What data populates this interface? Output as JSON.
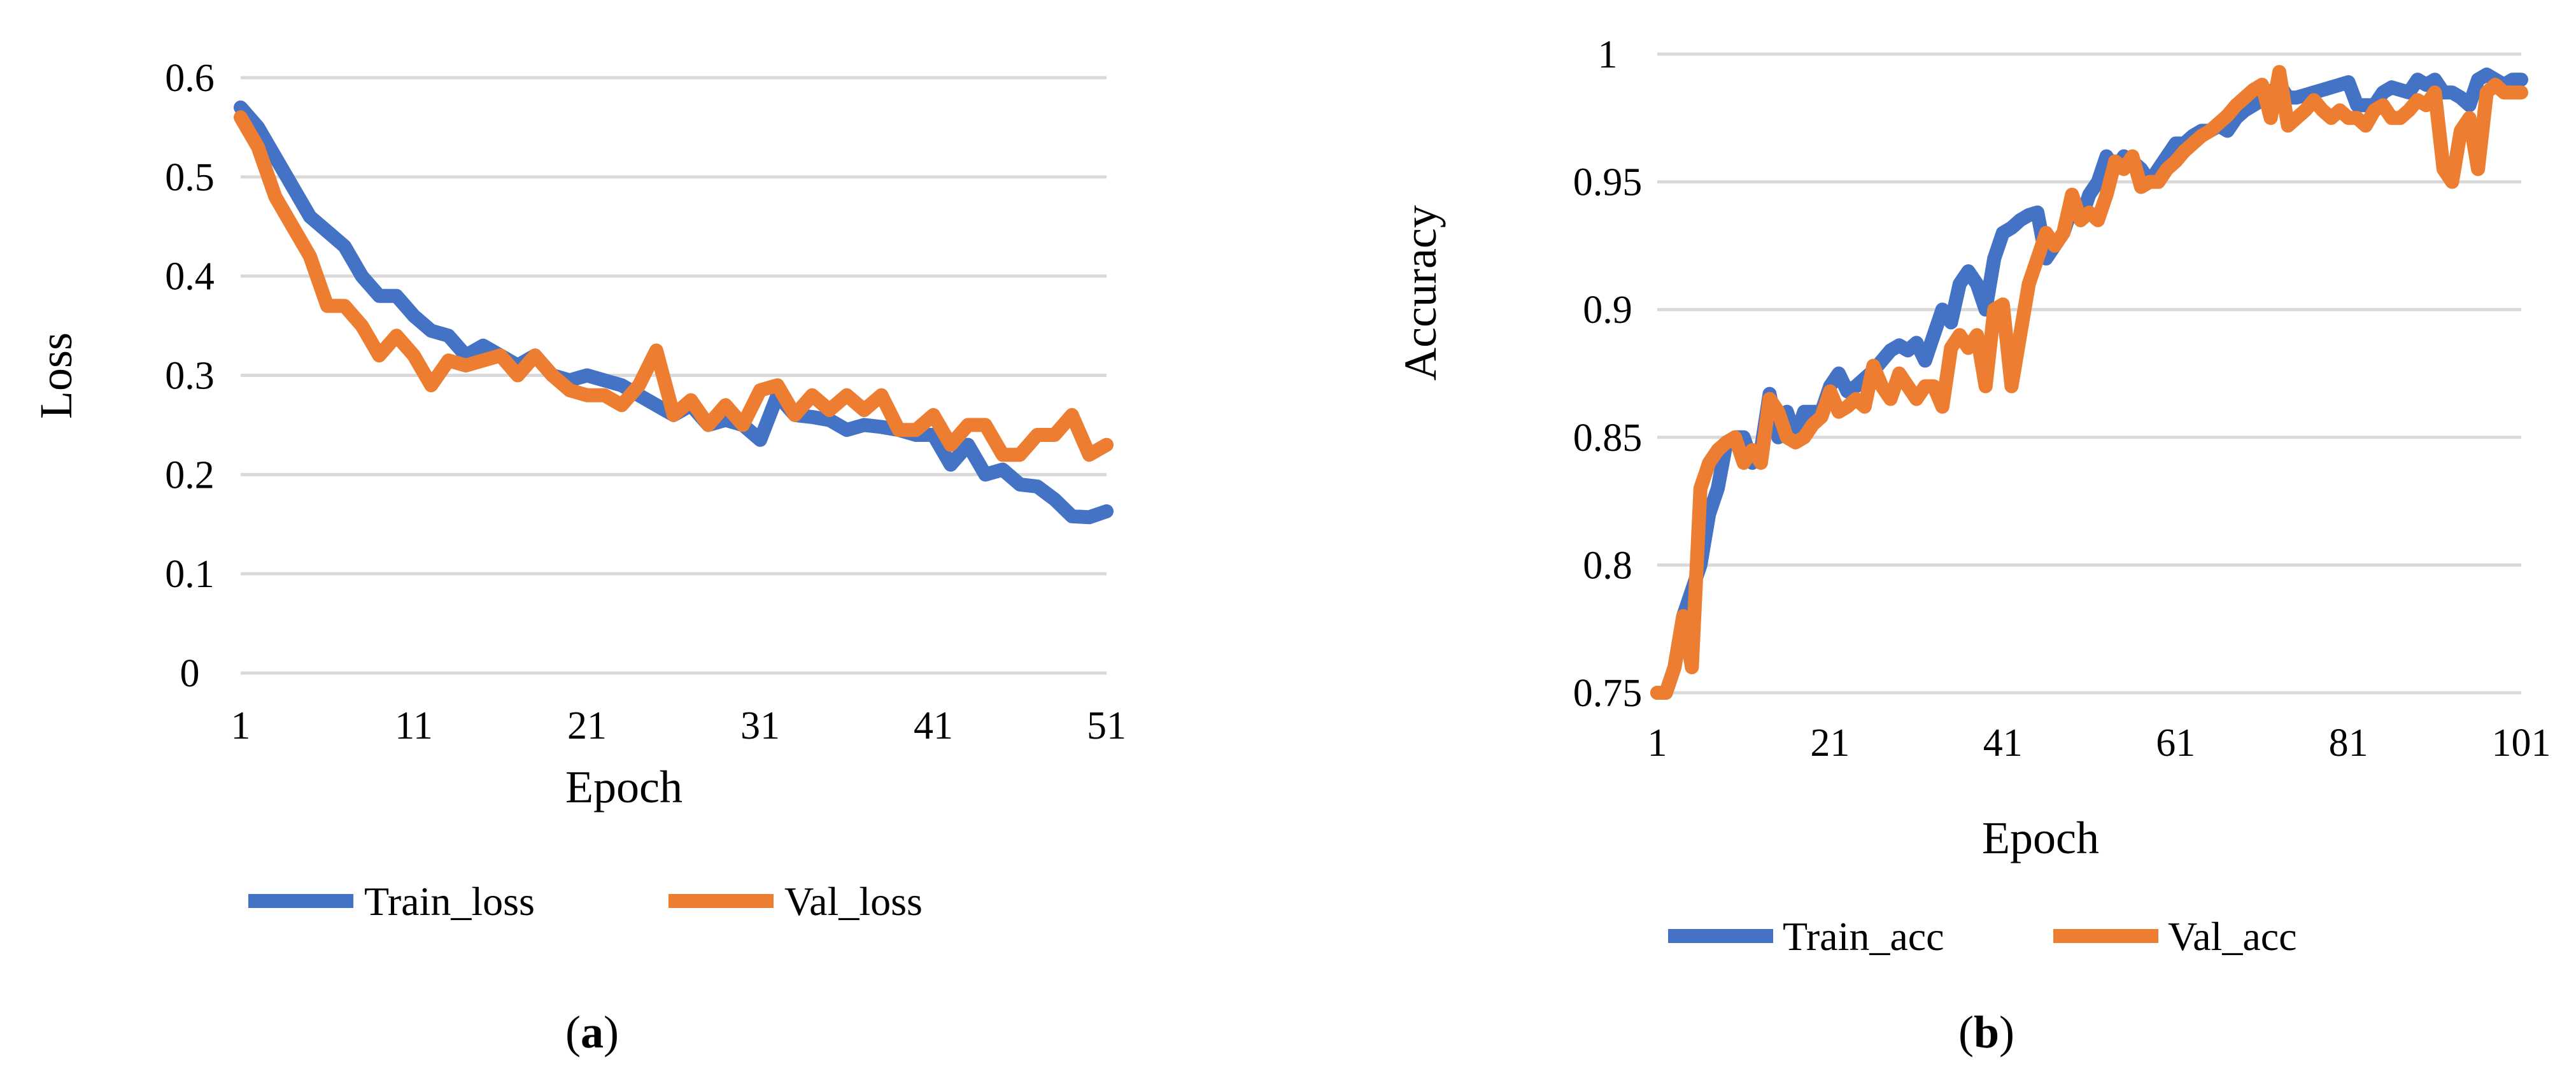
{
  "colors": {
    "train": "#4472c4",
    "val": "#ed7d31",
    "grid": "#d9d9d9"
  },
  "panel_labels": [
    "a",
    "b"
  ],
  "chart_data": [
    {
      "type": "line",
      "title": "",
      "xlabel": "Epoch",
      "ylabel": "Loss",
      "xlim": [
        1,
        51
      ],
      "ylim": [
        0,
        0.6
      ],
      "xticks": [
        "1",
        "11",
        "21",
        "31",
        "41",
        "51"
      ],
      "yticks": [
        "0",
        "0.1",
        "0.2",
        "0.3",
        "0.4",
        "0.5",
        "0.6"
      ],
      "grid": true,
      "legend": "bottom",
      "x": [
        1,
        2,
        3,
        4,
        5,
        6,
        7,
        8,
        9,
        10,
        11,
        12,
        13,
        14,
        15,
        16,
        17,
        18,
        19,
        20,
        21,
        22,
        23,
        24,
        25,
        26,
        27,
        28,
        29,
        30,
        31,
        32,
        33,
        34,
        35,
        36,
        37,
        38,
        39,
        40,
        41,
        42,
        43,
        44,
        45,
        46,
        47,
        48,
        49,
        50,
        51
      ],
      "series": [
        {
          "name": "Train_loss",
          "color": "#4472c4",
          "values": [
            0.57,
            0.55,
            0.52,
            0.49,
            0.46,
            0.445,
            0.43,
            0.4,
            0.38,
            0.38,
            0.36,
            0.345,
            0.34,
            0.32,
            0.33,
            0.32,
            0.31,
            0.32,
            0.3,
            0.295,
            0.3,
            0.295,
            0.29,
            0.28,
            0.27,
            0.26,
            0.27,
            0.25,
            0.255,
            0.25,
            0.235,
            0.28,
            0.26,
            0.258,
            0.255,
            0.245,
            0.25,
            0.248,
            0.245,
            0.24,
            0.24,
            0.21,
            0.23,
            0.2,
            0.205,
            0.19,
            0.188,
            0.175,
            0.158,
            0.157,
            0.163
          ]
        },
        {
          "name": "Val_loss",
          "color": "#ed7d31",
          "values": [
            0.56,
            0.53,
            0.48,
            0.45,
            0.42,
            0.37,
            0.37,
            0.35,
            0.32,
            0.34,
            0.32,
            0.29,
            0.315,
            0.31,
            0.315,
            0.32,
            0.3,
            0.32,
            0.3,
            0.285,
            0.28,
            0.28,
            0.27,
            0.29,
            0.325,
            0.26,
            0.275,
            0.25,
            0.27,
            0.25,
            0.285,
            0.29,
            0.26,
            0.28,
            0.265,
            0.28,
            0.265,
            0.28,
            0.245,
            0.245,
            0.26,
            0.23,
            0.25,
            0.25,
            0.22,
            0.22,
            0.24,
            0.24,
            0.26,
            0.22,
            0.23
          ]
        }
      ]
    },
    {
      "type": "line",
      "title": "",
      "xlabel": "Epoch",
      "ylabel": "Accuracy",
      "xlim": [
        1,
        101
      ],
      "ylim": [
        0.75,
        1.0
      ],
      "xticks": [
        "1",
        "21",
        "41",
        "61",
        "81",
        "101"
      ],
      "yticks": [
        "0.75",
        "0.8",
        "0.85",
        "0.9",
        "0.95",
        "1"
      ],
      "grid": true,
      "legend": "bottom",
      "x": [
        1,
        2,
        3,
        4,
        5,
        6,
        7,
        8,
        9,
        10,
        11,
        12,
        13,
        14,
        15,
        16,
        17,
        18,
        19,
        20,
        21,
        22,
        23,
        24,
        25,
        26,
        27,
        28,
        29,
        30,
        31,
        32,
        33,
        34,
        35,
        36,
        37,
        38,
        39,
        40,
        41,
        42,
        43,
        44,
        45,
        46,
        47,
        48,
        49,
        50,
        51,
        52,
        53,
        54,
        55,
        56,
        57,
        58,
        59,
        60,
        61,
        62,
        63,
        64,
        65,
        66,
        67,
        68,
        69,
        70,
        71,
        72,
        73,
        74,
        75,
        76,
        77,
        78,
        79,
        80,
        81,
        82,
        83,
        84,
        85,
        86,
        87,
        88,
        89,
        90,
        91,
        92,
        93,
        94,
        95,
        96,
        97,
        98,
        99,
        100,
        101
      ],
      "series": [
        {
          "name": "Train_acc",
          "color": "#4472c4",
          "values": [
            0.75,
            0.75,
            0.76,
            0.78,
            0.79,
            0.8,
            0.82,
            0.83,
            0.848,
            0.85,
            0.85,
            0.84,
            0.845,
            0.867,
            0.85,
            0.86,
            0.85,
            0.86,
            0.86,
            0.86,
            0.87,
            0.875,
            0.868,
            0.87,
            0.873,
            0.876,
            0.88,
            0.884,
            0.886,
            0.884,
            0.887,
            0.88,
            0.89,
            0.9,
            0.895,
            0.91,
            0.915,
            0.91,
            0.9,
            0.92,
            0.93,
            0.932,
            0.935,
            0.937,
            0.938,
            0.92,
            0.925,
            0.93,
            0.94,
            0.935,
            0.945,
            0.95,
            0.96,
            0.955,
            0.96,
            0.958,
            0.955,
            0.95,
            0.955,
            0.96,
            0.965,
            0.965,
            0.968,
            0.97,
            0.97,
            0.972,
            0.97,
            0.975,
            0.978,
            0.98,
            0.982,
            0.985,
            0.988,
            0.983,
            0.983,
            0.984,
            0.985,
            0.986,
            0.987,
            0.988,
            0.989,
            0.98,
            0.98,
            0.98,
            0.985,
            0.987,
            0.986,
            0.985,
            0.99,
            0.988,
            0.99,
            0.985,
            0.985,
            0.983,
            0.98,
            0.99,
            0.992,
            0.99,
            0.988,
            0.99,
            0.99
          ]
        },
        {
          "name": "Val_acc",
          "color": "#ed7d31",
          "values": [
            0.75,
            0.75,
            0.76,
            0.78,
            0.76,
            0.83,
            0.84,
            0.845,
            0.848,
            0.85,
            0.84,
            0.845,
            0.84,
            0.865,
            0.86,
            0.85,
            0.848,
            0.85,
            0.855,
            0.858,
            0.868,
            0.86,
            0.862,
            0.865,
            0.862,
            0.878,
            0.87,
            0.865,
            0.875,
            0.87,
            0.865,
            0.87,
            0.87,
            0.862,
            0.885,
            0.89,
            0.885,
            0.89,
            0.87,
            0.9,
            0.902,
            0.87,
            0.89,
            0.91,
            0.92,
            0.93,
            0.925,
            0.93,
            0.945,
            0.935,
            0.938,
            0.935,
            0.945,
            0.958,
            0.955,
            0.96,
            0.948,
            0.95,
            0.95,
            0.955,
            0.958,
            0.962,
            0.965,
            0.968,
            0.97,
            0.973,
            0.976,
            0.98,
            0.983,
            0.986,
            0.988,
            0.975,
            0.993,
            0.972,
            0.975,
            0.978,
            0.982,
            0.978,
            0.975,
            0.978,
            0.975,
            0.975,
            0.972,
            0.978,
            0.98,
            0.975,
            0.975,
            0.978,
            0.982,
            0.98,
            0.985,
            0.955,
            0.95,
            0.97,
            0.975,
            0.955,
            0.985,
            0.988,
            0.985,
            0.985,
            0.985
          ]
        }
      ]
    }
  ]
}
